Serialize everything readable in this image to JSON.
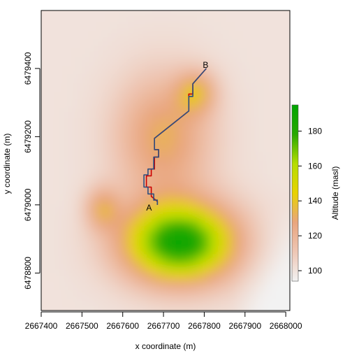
{
  "chart_data": {
    "type": "heatmap",
    "title": "",
    "xlabel": "x coordinate (m)",
    "ylabel": "y coordinate (m)",
    "xlim": [
      2667400,
      2668010
    ],
    "ylim": [
      6478690,
      6479570
    ],
    "x_ticks": [
      "2667400",
      "2667500",
      "2667600",
      "2667700",
      "2667800",
      "2667900",
      "2668000"
    ],
    "x_tick_values": [
      2667400,
      2667500,
      2667600,
      2667700,
      2667800,
      2667900,
      2668000
    ],
    "y_ticks": [
      "6478800",
      "6479000",
      "6479200",
      "6479400"
    ],
    "y_tick_values": [
      6478800,
      6479000,
      6479200,
      6479400
    ],
    "colorbar": {
      "label": "Altitude (masl)",
      "range": [
        94,
        195
      ],
      "ticks": [
        "100",
        "120",
        "140",
        "160",
        "180"
      ],
      "tick_values": [
        100,
        120,
        140,
        160,
        180
      ],
      "colors": [
        "#f2f2f2",
        "#eec6b4",
        "#e9a57d",
        "#e8d200",
        "#b5dd00",
        "#26a800",
        "#00a600"
      ]
    },
    "grid": false,
    "legend": "right",
    "points": [
      {
        "label": "A",
        "x": 2667685,
        "y": 6479000
      },
      {
        "label": "B",
        "x": 2667805,
        "y": 6479400
      }
    ],
    "series": [
      {
        "color": "#cc0000",
        "x": [
          2667685,
          2667685,
          2667670,
          2667670,
          2667658,
          2667658,
          2667670,
          2667670,
          2667678,
          2667678,
          2667688,
          2667688,
          2667678,
          2667678,
          2667762,
          2667762,
          2667772,
          2667772,
          2667805
        ],
        "y": [
          6479000,
          6479010,
          6479025,
          6479052,
          6479052,
          6479085,
          6479085,
          6479105,
          6479105,
          6479140,
          6479140,
          6479162,
          6479162,
          6479195,
          6479275,
          6479325,
          6479325,
          6479355,
          6479400
        ]
      },
      {
        "color": "#2f4f7f",
        "x": [
          2667685,
          2667685,
          2667676,
          2667676,
          2667662,
          2667662,
          2667652,
          2667652,
          2667662,
          2667662,
          2667676,
          2667676,
          2667688,
          2667688,
          2667678,
          2667678,
          2667762,
          2667762,
          2667772,
          2667772,
          2667805
        ],
        "y": [
          6479000,
          6479014,
          6479014,
          6479032,
          6479032,
          6479052,
          6479052,
          6479088,
          6479088,
          6479105,
          6479105,
          6479140,
          6479140,
          6479162,
          6479162,
          6479195,
          6479275,
          6479318,
          6479318,
          6479355,
          6479400
        ]
      }
    ]
  }
}
